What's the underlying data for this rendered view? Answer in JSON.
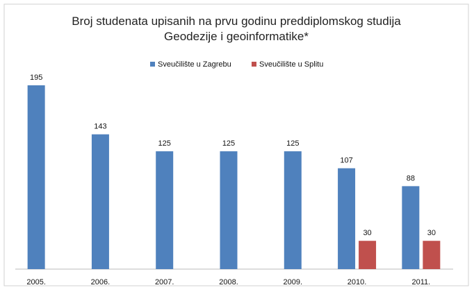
{
  "chart_data": {
    "type": "bar",
    "title": "Broj studenata upisanih na prvu godinu preddiplomskog studija Geodezije i geoinformatike*",
    "categories": [
      "2005.",
      "2006.",
      "2007.",
      "2008.",
      "2009.",
      "2010.",
      "2011."
    ],
    "series": [
      {
        "name": "Sveučilište u Zagrebu",
        "color": "#4f81bd",
        "values": [
          195,
          143,
          125,
          125,
          125,
          107,
          88
        ]
      },
      {
        "name": "Sveučilište u Splitu",
        "color": "#c0504d",
        "values": [
          null,
          null,
          null,
          null,
          null,
          30,
          30
        ]
      }
    ],
    "legend": "top"
  }
}
